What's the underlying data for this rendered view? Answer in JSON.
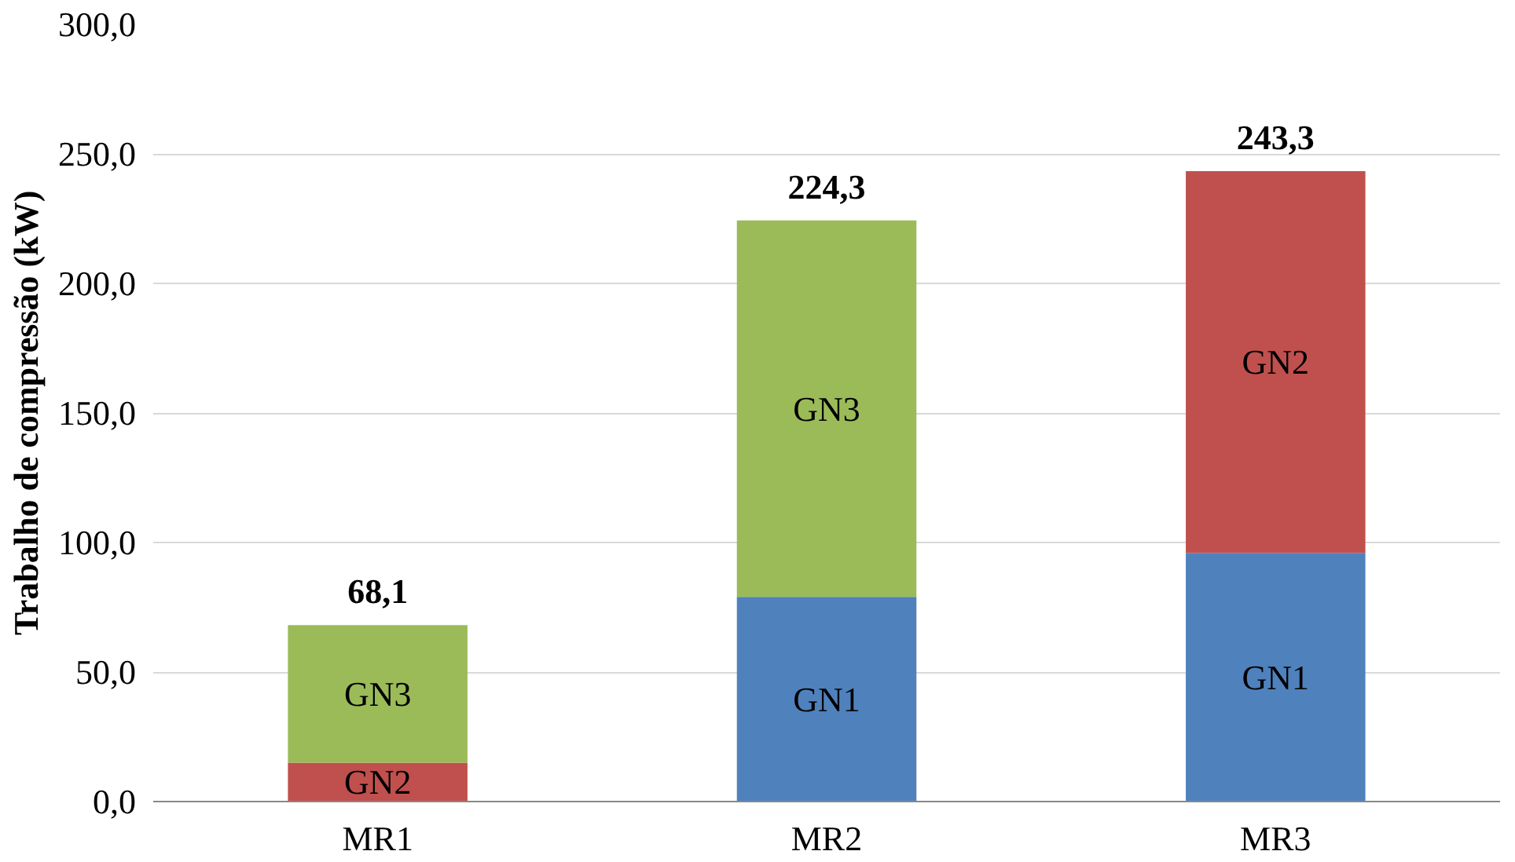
{
  "chart_data": {
    "type": "bar",
    "stacked": true,
    "ylabel": "Trabalho de compressão (kW)",
    "categories": [
      "MR1",
      "MR2",
      "MR3"
    ],
    "series": [
      {
        "name": "GN1",
        "color": "#4f81bd",
        "values": [
          null,
          79,
          96
        ]
      },
      {
        "name": "GN2",
        "color": "#c0504d",
        "values": [
          15,
          null,
          147.3
        ]
      },
      {
        "name": "GN3",
        "color": "#9bbb59",
        "values": [
          53.1,
          145.3,
          null
        ]
      }
    ],
    "totals": [
      "68,1",
      "224,3",
      "243,3"
    ],
    "ylim": [
      0,
      300
    ],
    "yticks": [
      {
        "value": 0,
        "label": "0,0"
      },
      {
        "value": 50,
        "label": "50,0"
      },
      {
        "value": 100,
        "label": "100,0"
      },
      {
        "value": 150,
        "label": "150,0"
      },
      {
        "value": 200,
        "label": "200,0"
      },
      {
        "value": 250,
        "label": "250,0"
      },
      {
        "value": 300,
        "label": "300,0"
      }
    ],
    "grid": "y"
  }
}
